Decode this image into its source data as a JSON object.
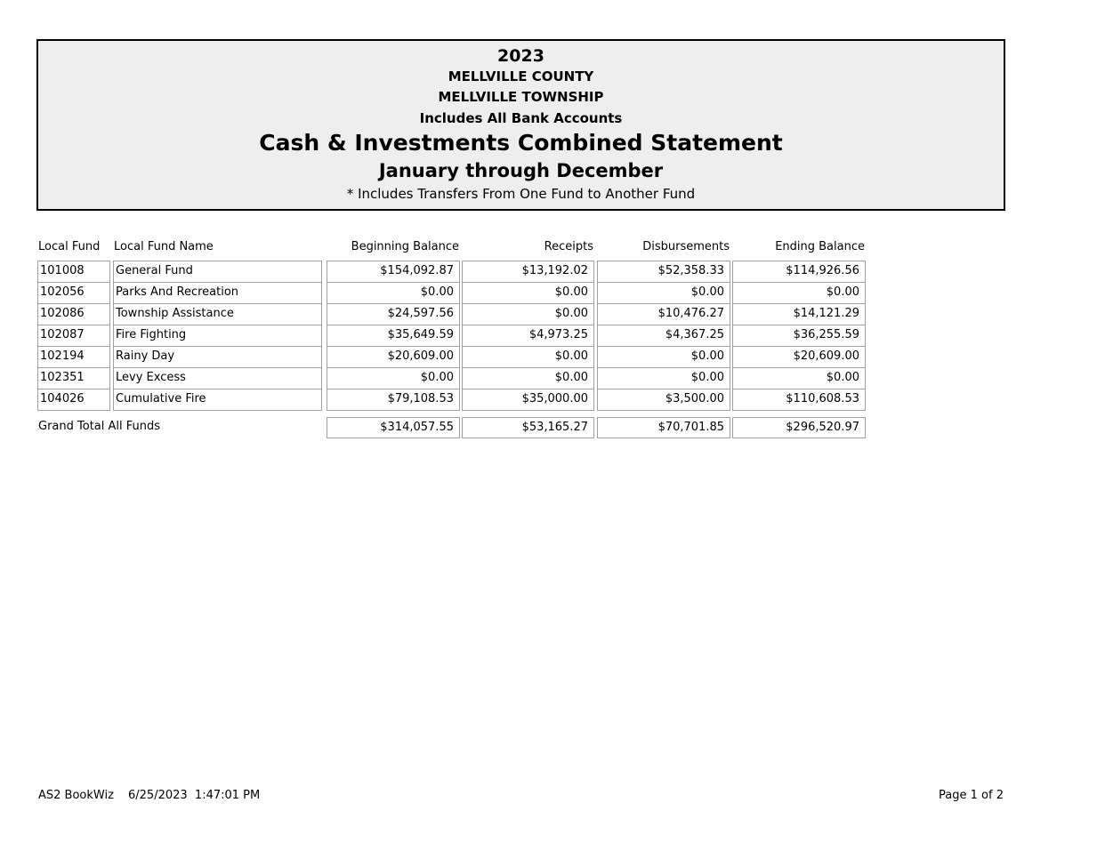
{
  "header": {
    "year": "2023",
    "county": "MELLVILLE COUNTY",
    "township": "MELLVILLE TOWNSHIP",
    "scope": "Includes All Bank Accounts",
    "title": "Cash & Investments Combined Statement",
    "period": "January through December",
    "note": "* Includes Transfers From One Fund to Another Fund"
  },
  "table": {
    "columns": [
      "Local Fund",
      "Local Fund Name",
      "Beginning Balance",
      "Receipts",
      "Disbursements",
      "Ending Balance"
    ],
    "rows": [
      [
        "101008",
        "General Fund",
        "$154,092.87",
        "$13,192.02",
        "$52,358.33",
        "$114,926.56"
      ],
      [
        "102056",
        "Parks And Recreation",
        "$0.00",
        "$0.00",
        "$0.00",
        "$0.00"
      ],
      [
        "102086",
        "Township Assistance",
        "$24,597.56",
        "$0.00",
        "$10,476.27",
        "$14,121.29"
      ],
      [
        "102087",
        "Fire Fighting",
        "$35,649.59",
        "$4,973.25",
        "$4,367.25",
        "$36,255.59"
      ],
      [
        "102194",
        "Rainy Day",
        "$20,609.00",
        "$0.00",
        "$0.00",
        "$20,609.00"
      ],
      [
        "102351",
        "Levy Excess",
        "$0.00",
        "$0.00",
        "$0.00",
        "$0.00"
      ],
      [
        "104026",
        "Cumulative Fire",
        "$79,108.53",
        "$35,000.00",
        "$3,500.00",
        "$110,608.53"
      ]
    ],
    "total": {
      "label": "Grand Total All Funds",
      "values": [
        "$314,057.55",
        "$53,165.27",
        "$70,701.85",
        "$296,520.97"
      ]
    }
  },
  "footer": {
    "app": "AS2 BookWiz",
    "timestamp": "6/25/2023  1:47:01 PM",
    "page": "Page 1 of 2"
  }
}
